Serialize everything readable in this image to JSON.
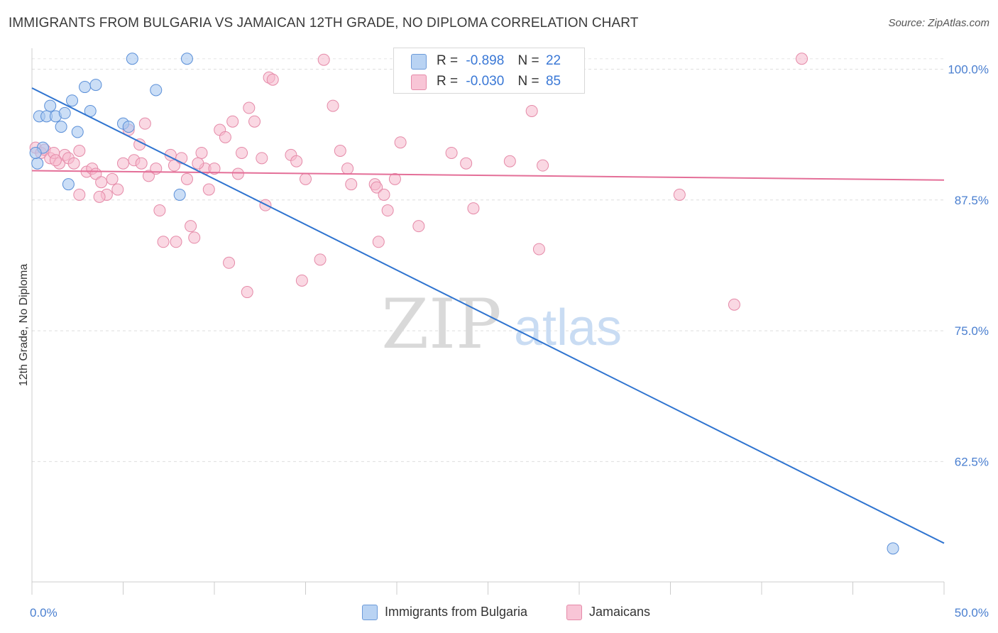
{
  "title": "IMMIGRANTS FROM BULGARIA VS JAMAICAN 12TH GRADE, NO DIPLOMA CORRELATION CHART",
  "source": "Source: ZipAtlas.com",
  "watermark": {
    "zip": "ZIP",
    "atlas": "atlas"
  },
  "legend": {
    "series1": {
      "r_label": "R =",
      "r_value": "-0.898",
      "n_label": "N =",
      "n_value": "22"
    },
    "series2": {
      "r_label": "R =",
      "r_value": "-0.030",
      "n_label": "N =",
      "n_value": "85"
    }
  },
  "bottom_legend": {
    "series1": "Immigrants from Bulgaria",
    "series2": "Jamaicans"
  },
  "colors": {
    "blue_fill": "#a8c8f0",
    "blue_stroke": "#5a8fd8",
    "blue_line": "#2f74d0",
    "pink_fill": "#f6b8cc",
    "pink_stroke": "#e58aa8",
    "pink_line": "#e46f98",
    "tick_label": "#4a7fd0"
  },
  "chart_data": {
    "type": "scatter",
    "ylabel": "12th Grade, No Diploma",
    "xlim": [
      0,
      50
    ],
    "ylim": [
      51,
      102
    ],
    "x_tick_labels": [
      {
        "value": 0,
        "label": "0.0%"
      },
      {
        "value": 50,
        "label": "50.0%"
      }
    ],
    "y_tick_labels": [
      {
        "value": 100,
        "label": "100.0%"
      },
      {
        "value": 87.5,
        "label": "87.5%"
      },
      {
        "value": 75,
        "label": "75.0%"
      },
      {
        "value": 62.5,
        "label": "62.5%"
      }
    ],
    "y_gridlines": [
      100,
      87.5,
      75,
      62.5
    ],
    "x_minor_ticks": [
      5,
      10,
      15,
      20,
      25,
      30,
      35,
      40,
      45
    ],
    "series": [
      {
        "name": "Immigrants from Bulgaria",
        "color": "blue",
        "points": [
          [
            0.3,
            91.0
          ],
          [
            0.4,
            95.5
          ],
          [
            0.8,
            95.5
          ],
          [
            1.0,
            96.5
          ],
          [
            1.3,
            95.5
          ],
          [
            1.6,
            94.5
          ],
          [
            1.8,
            95.8
          ],
          [
            2.2,
            97.0
          ],
          [
            2.5,
            94.0
          ],
          [
            2.9,
            98.3
          ],
          [
            3.2,
            96.0
          ],
          [
            3.5,
            98.5
          ],
          [
            5.0,
            94.8
          ],
          [
            5.3,
            94.5
          ],
          [
            5.5,
            101.0
          ],
          [
            6.8,
            98.0
          ],
          [
            8.1,
            88.0
          ],
          [
            8.5,
            101.0
          ],
          [
            2.0,
            89.0
          ],
          [
            0.6,
            92.5
          ],
          [
            0.2,
            92.0
          ],
          [
            47.2,
            54.2
          ]
        ],
        "trend": {
          "x": [
            0,
            50
          ],
          "y": [
            98.2,
            54.7
          ]
        }
      },
      {
        "name": "Jamaicans",
        "color": "pink",
        "points": [
          [
            0.2,
            92.5
          ],
          [
            0.5,
            92.0
          ],
          [
            0.7,
            92.3
          ],
          [
            1.0,
            91.5
          ],
          [
            1.2,
            92.0
          ],
          [
            1.5,
            91.0
          ],
          [
            1.8,
            91.8
          ],
          [
            2.0,
            91.5
          ],
          [
            2.3,
            91.0
          ],
          [
            2.6,
            92.2
          ],
          [
            3.0,
            90.2
          ],
          [
            3.3,
            90.5
          ],
          [
            3.5,
            90.0
          ],
          [
            3.8,
            89.2
          ],
          [
            4.1,
            88.0
          ],
          [
            4.4,
            89.5
          ],
          [
            2.6,
            88.0
          ],
          [
            5.0,
            91.0
          ],
          [
            5.3,
            94.2
          ],
          [
            5.6,
            91.3
          ],
          [
            5.9,
            92.8
          ],
          [
            6.2,
            94.8
          ],
          [
            6.4,
            89.8
          ],
          [
            6.8,
            90.5
          ],
          [
            7.0,
            86.5
          ],
          [
            7.2,
            83.5
          ],
          [
            7.6,
            91.8
          ],
          [
            7.9,
            83.5
          ],
          [
            7.8,
            90.8
          ],
          [
            8.2,
            91.5
          ],
          [
            8.5,
            89.5
          ],
          [
            8.7,
            85.0
          ],
          [
            8.9,
            83.9
          ],
          [
            9.3,
            92.0
          ],
          [
            9.5,
            90.5
          ],
          [
            9.7,
            88.5
          ],
          [
            10.0,
            90.5
          ],
          [
            10.3,
            94.2
          ],
          [
            10.6,
            93.5
          ],
          [
            10.8,
            81.5
          ],
          [
            11.0,
            95.0
          ],
          [
            11.3,
            90.0
          ],
          [
            11.5,
            92.0
          ],
          [
            11.8,
            78.7
          ],
          [
            11.9,
            96.3
          ],
          [
            12.2,
            95.0
          ],
          [
            12.6,
            91.5
          ],
          [
            12.8,
            87.0
          ],
          [
            13.0,
            99.2
          ],
          [
            13.2,
            99.0
          ],
          [
            14.2,
            91.8
          ],
          [
            14.5,
            91.2
          ],
          [
            14.8,
            79.8
          ],
          [
            15.0,
            89.5
          ],
          [
            15.8,
            81.8
          ],
          [
            16.0,
            100.9
          ],
          [
            16.5,
            96.5
          ],
          [
            16.9,
            92.2
          ],
          [
            17.3,
            90.5
          ],
          [
            17.5,
            89.0
          ],
          [
            18.8,
            89.0
          ],
          [
            19.0,
            83.5
          ],
          [
            18.9,
            88.7
          ],
          [
            19.3,
            88.0
          ],
          [
            19.5,
            86.5
          ],
          [
            19.9,
            89.5
          ],
          [
            20.2,
            93.0
          ],
          [
            21.2,
            85.0
          ],
          [
            21.8,
            101.0
          ],
          [
            23.0,
            92.0
          ],
          [
            23.8,
            91.0
          ],
          [
            24.2,
            86.7
          ],
          [
            26.2,
            91.2
          ],
          [
            27.0,
            101.0
          ],
          [
            27.4,
            96.0
          ],
          [
            27.8,
            82.8
          ],
          [
            28.0,
            90.8
          ],
          [
            35.5,
            88.0
          ],
          [
            38.5,
            77.5
          ],
          [
            42.2,
            101.0
          ],
          [
            1.3,
            91.3
          ],
          [
            4.7,
            88.5
          ],
          [
            3.7,
            87.8
          ],
          [
            6.0,
            91.0
          ],
          [
            9.1,
            91.0
          ]
        ],
        "trend": {
          "x": [
            0,
            50
          ],
          "y": [
            90.3,
            89.4
          ]
        }
      }
    ]
  }
}
